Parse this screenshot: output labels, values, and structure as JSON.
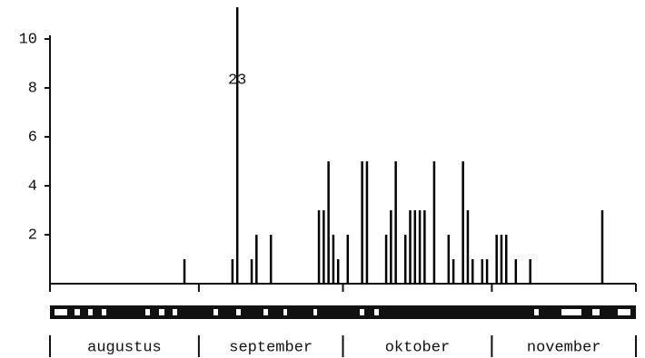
{
  "chart_data": {
    "type": "spike",
    "x": [
      28,
      38,
      39,
      42,
      43,
      46,
      56,
      57,
      58,
      59,
      60,
      62,
      65,
      66,
      70,
      71,
      72,
      74,
      75,
      76,
      77,
      78,
      80,
      83,
      84,
      86,
      87,
      88,
      90,
      91,
      93,
      94,
      95,
      97,
      100,
      115
    ],
    "values": [
      1,
      1,
      23,
      1,
      2,
      2,
      3,
      3,
      5,
      2,
      1,
      2,
      5,
      5,
      2,
      3,
      5,
      2,
      3,
      3,
      3,
      3,
      5,
      2,
      1,
      5,
      3,
      1,
      1,
      1,
      2,
      2,
      2,
      1,
      1,
      3
    ],
    "value_labels": [
      null,
      null,
      "23",
      null,
      null,
      null,
      null,
      null,
      null,
      null,
      null,
      null,
      null,
      null,
      null,
      null,
      null,
      null,
      null,
      null,
      null,
      null,
      null,
      null,
      null,
      null,
      null,
      null,
      null,
      null,
      null,
      null,
      null,
      null,
      null,
      null
    ],
    "color": "#000000",
    "xlim": [
      0,
      122
    ],
    "ylim": [
      0,
      10
    ],
    "yticks": [
      2,
      4,
      6,
      8,
      10
    ],
    "months": [
      {
        "label": "augustus",
        "start": 0,
        "end": 31
      },
      {
        "label": "september",
        "start": 31,
        "end": 61
      },
      {
        "label": "oktober",
        "start": 61,
        "end": 92
      },
      {
        "label": "november",
        "start": 92,
        "end": 122
      }
    ]
  }
}
